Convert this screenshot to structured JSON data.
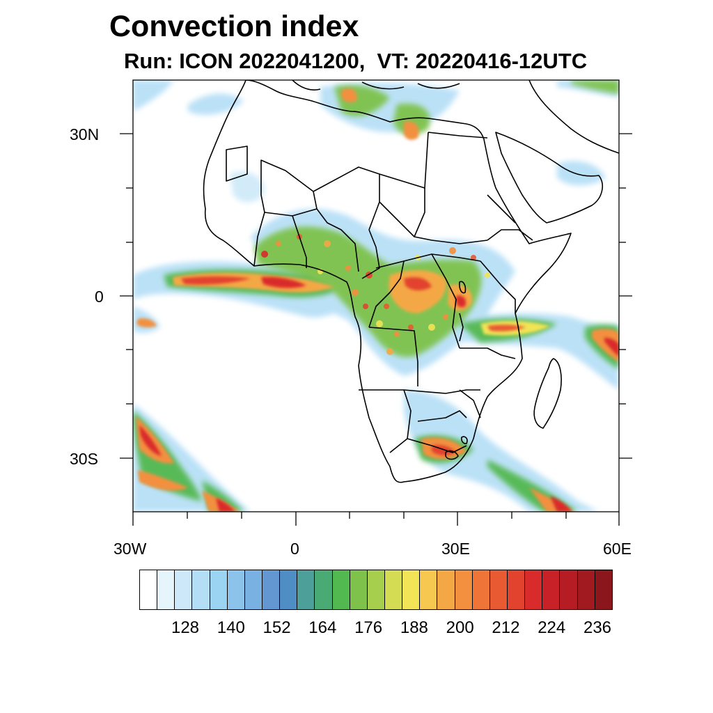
{
  "title": "Convection index",
  "subtitle": "Run: ICON 2022041200,  VT: 20220416-12UTC",
  "axes": {
    "lat_labels": [
      "30N",
      "0",
      "30S"
    ],
    "lon_labels": [
      "30W",
      "0",
      "30E",
      "60E"
    ]
  },
  "colorbar": {
    "labels": [
      "128",
      "140",
      "152",
      "164",
      "176",
      "188",
      "200",
      "212",
      "224",
      "236"
    ],
    "colors": [
      "#ffffff",
      "#e6f4fc",
      "#cde9f9",
      "#b4def6",
      "#9bd3f2",
      "#8cc3ea",
      "#78b1e2",
      "#6397d2",
      "#4f8ec4",
      "#4d9f9a",
      "#4aaa74",
      "#52b850",
      "#7ec24b",
      "#a7cf4e",
      "#d3dc52",
      "#f1e456",
      "#f6c84f",
      "#f4a845",
      "#f2903f",
      "#ee7437",
      "#e85a31",
      "#e2432e",
      "#d92a2c",
      "#c92128",
      "#b51c24",
      "#a11a20",
      "#8b161c"
    ]
  }
}
